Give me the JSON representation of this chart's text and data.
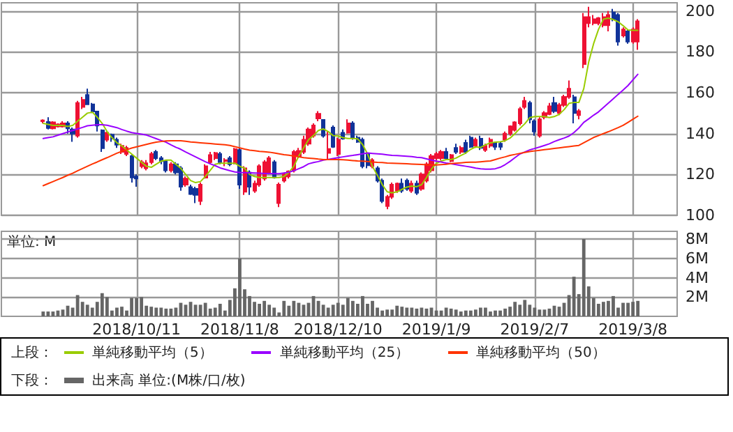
{
  "chart_data": [
    {
      "type": "candlestick",
      "ylim": [
        100,
        204
      ],
      "yticks": [
        100,
        120,
        140,
        160,
        180,
        200
      ],
      "grid": true,
      "tick_labels": "y",
      "legend": "bottom",
      "legend_title": "上段：",
      "marker": "none",
      "line_style": "solid",
      "categories": [
        null,
        null,
        null,
        null,
        null,
        null,
        null,
        null,
        null,
        null,
        null,
        null,
        null,
        null,
        null,
        null,
        null,
        null,
        null,
        "2018/10/11",
        null,
        null,
        null,
        null,
        null,
        null,
        null,
        null,
        null,
        null,
        null,
        null,
        null,
        null,
        null,
        null,
        null,
        null,
        null,
        null,
        "2018/11/8",
        null,
        null,
        null,
        null,
        null,
        null,
        null,
        null,
        null,
        null,
        null,
        null,
        null,
        null,
        null,
        null,
        null,
        null,
        null,
        "2018/12/10",
        null,
        null,
        null,
        null,
        null,
        null,
        null,
        null,
        null,
        null,
        null,
        null,
        null,
        null,
        null,
        null,
        null,
        null,
        null,
        "2019/1/9",
        null,
        null,
        null,
        null,
        null,
        null,
        null,
        null,
        null,
        null,
        null,
        null,
        null,
        null,
        null,
        null,
        null,
        null,
        null,
        "2019/2/7",
        null,
        null,
        null,
        null,
        null,
        null,
        null,
        null,
        null,
        null,
        null,
        null,
        null,
        null,
        null,
        null,
        null,
        null,
        null,
        "2019/3/8",
        null
      ],
      "series": [
        {
          "type": "candlestick",
          "ohlc": [
            [
              146,
              147,
              145,
              146.5
            ],
            [
              145.7,
              148,
              142,
              142.7
            ],
            [
              142.5,
              146,
              142,
              145.5
            ],
            [
              143.5,
              145,
              143,
              144.5
            ],
            [
              143.5,
              146,
              143,
              145
            ],
            [
              145,
              146,
              140,
              142.5
            ],
            [
              142,
              143,
              136,
              140
            ],
            [
              139,
              156,
              138,
              155
            ],
            [
              153,
              158,
              152,
              156.5
            ],
            [
              158.9,
              162,
              154,
              154.3
            ],
            [
              154.3,
              155,
              150,
              150.8
            ],
            [
              150.8,
              151,
              141,
              143.9
            ],
            [
              141.6,
              142,
              131,
              132.8
            ],
            [
              137,
              141,
              136,
              140.4
            ],
            [
              139.5,
              140,
              136,
              137.5
            ],
            [
              137,
              138,
              133,
              134.5
            ],
            [
              131,
              135,
              130,
              134
            ],
            [
              130,
              134,
              129,
              133
            ],
            [
              129,
              130,
              116,
              118.5
            ],
            [
              119,
              120,
              114,
              118
            ],
            [
              124,
              127,
              123,
              126
            ],
            [
              123,
              127,
              122,
              125.5
            ],
            [
              126,
              131,
              125,
              130
            ],
            [
              131,
              132,
              127,
              128
            ],
            [
              128,
              129,
              125,
              126.5
            ],
            [
              126.5,
              127,
              121,
              122
            ],
            [
              122,
              126,
              121,
              125
            ],
            [
              125,
              126,
              120,
              121
            ],
            [
              123,
              124,
              112,
              114
            ],
            [
              115,
              119,
              114,
              118
            ],
            [
              113.8,
              115,
              110,
              110.4
            ],
            [
              113,
              114,
              106,
              110
            ],
            [
              107,
              116,
              105,
              115
            ],
            [
              118.4,
              125,
              118,
              124
            ],
            [
              126,
              131,
              125,
              129.5
            ],
            [
              128,
              131,
              127,
              130.5
            ],
            [
              130,
              131,
              125,
              126
            ],
            [
              127,
              128,
              124,
              126.5
            ],
            [
              128,
              129,
              124,
              125
            ],
            [
              125.4,
              133,
              125,
              132.4
            ],
            [
              132,
              133,
              113,
              115
            ],
            [
              111.5,
              124,
              110,
              123
            ],
            [
              121,
              122,
              110,
              114
            ],
            [
              112,
              117,
              111,
              115.5
            ],
            [
              115,
              125,
              114,
              124
            ],
            [
              118,
              127,
              117,
              126
            ],
            [
              121,
              129,
              120,
              128
            ],
            [
              126,
              127,
              118,
              118.5
            ],
            [
              106,
              116,
              104,
              115
            ],
            [
              117,
              121,
              116,
              120
            ],
            [
              119,
              122,
              118,
              121.5
            ],
            [
              122,
              132,
              121,
              131
            ],
            [
              129,
              133,
              128,
              131.5
            ],
            [
              131,
              139,
              130,
              137
            ],
            [
              135,
              143,
              134,
              142
            ],
            [
              139,
              145,
              138,
              144
            ],
            [
              147.4,
              151,
              146,
              149.7
            ],
            [
              146.7,
              147,
              138,
              139
            ],
            [
              130.5,
              141,
              127,
              132.5
            ],
            [
              143,
              144,
              133,
              133.5
            ],
            [
              130,
              138,
              129,
              137
            ],
            [
              140.4,
              142,
              137,
              137.5
            ],
            [
              140.4,
              147,
              140,
              145
            ],
            [
              145,
              146,
              137,
              138
            ],
            [
              138,
              139,
              135.5,
              136
            ],
            [
              137,
              138,
              123,
              124
            ],
            [
              130,
              131,
              123,
              124.5
            ],
            [
              124,
              128,
              123,
              127
            ],
            [
              123,
              124,
              116,
              117
            ],
            [
              117,
              118,
              106,
              107
            ],
            [
              104.5,
              110,
              103,
              109
            ],
            [
              109,
              116,
              108,
              115
            ],
            [
              112,
              116,
              111,
              115.5
            ],
            [
              115.5,
              118,
              111,
              112
            ],
            [
              117,
              118,
              112,
              113
            ],
            [
              112,
              117,
              111,
              115.5
            ],
            [
              115.5,
              117,
              110,
              111
            ],
            [
              113,
              121,
              112,
              120
            ],
            [
              117,
              126,
              116,
              125
            ],
            [
              122,
              130,
              121,
              129
            ],
            [
              128,
              131,
              127,
              130
            ],
            [
              128,
              132,
              127,
              131
            ],
            [
              131,
              133,
              127,
              128
            ],
            [
              126.5,
              130,
              126,
              129.5
            ],
            [
              133,
              135,
              130,
              131
            ],
            [
              131,
              134,
              130,
              133
            ],
            [
              135.5,
              137,
              130,
              131
            ],
            [
              138,
              139,
              133,
              133.5
            ],
            [
              134,
              138,
              133,
              137
            ],
            [
              137.5,
              139,
              132,
              133
            ],
            [
              132,
              135,
              131,
              134
            ],
            [
              134,
              138,
              133,
              137
            ],
            [
              135.5,
              136,
              132,
              133.5
            ],
            [
              135,
              136,
              132,
              133.5
            ],
            [
              137,
              141,
              136,
              140
            ],
            [
              140,
              144,
              139,
              143.6
            ],
            [
              141.8,
              146,
              141,
              145.5
            ],
            [
              145,
              153,
              144,
              152
            ],
            [
              153,
              158,
              152,
              156
            ],
            [
              155,
              156,
              145,
              147
            ],
            [
              146,
              147,
              139,
              141
            ],
            [
              139,
              148,
              138,
              147
            ],
            [
              148,
              151,
              147,
              150
            ],
            [
              149.5,
              155,
              149,
              153.4
            ],
            [
              155,
              158,
              150,
              151
            ],
            [
              150,
              155,
              149,
              154
            ],
            [
              154,
              159,
              153,
              158
            ],
            [
              158,
              166,
              157,
              162
            ],
            [
              157.8,
              159,
              145,
              150
            ],
            [
              149,
              152,
              147,
              151
            ],
            [
              174,
              199,
              172,
              197
            ],
            [
              194,
              202,
              192,
              197
            ],
            [
              194,
              198,
              193,
              196
            ],
            [
              194,
              197,
              193,
              196.5
            ],
            [
              193,
              199,
              192,
              197
            ],
            [
              193,
              200,
              190,
              198
            ],
            [
              199.3,
              201,
              195,
              196
            ],
            [
              198,
              199,
              183,
              185
            ],
            [
              188,
              192,
              187,
              191
            ],
            [
              190,
              191,
              184,
              185
            ],
            [
              185,
              192,
              184,
              191
            ],
            [
              185,
              196,
              181,
              195
            ]
          ],
          "colors": [
            "#ee1133",
            "#113399",
            "#ee1133",
            "#ee1133",
            "#ee1133",
            "#113399",
            "#113399",
            "#ee1133",
            "#ee1133",
            "#113399",
            "#113399",
            "#113399",
            "#113399",
            "#ee1133",
            "#113399",
            "#113399",
            "#ee1133",
            "#ee1133",
            "#113399",
            "#113399",
            "#ee1133",
            "#ee1133",
            "#ee1133",
            "#113399",
            "#113399",
            "#113399",
            "#ee1133",
            "#113399",
            "#113399",
            "#ee1133",
            "#113399",
            "#113399",
            "#ee1133",
            "#ee1133",
            "#ee1133",
            "#ee1133",
            "#113399",
            "#ee1133",
            "#113399",
            "#ee1133",
            "#113399",
            "#ee1133",
            "#113399",
            "#ee1133",
            "#ee1133",
            "#ee1133",
            "#ee1133",
            "#113399",
            "#ee1133",
            "#ee1133",
            "#ee1133",
            "#ee1133",
            "#ee1133",
            "#ee1133",
            "#ee1133",
            "#ee1133",
            "#ee1133",
            "#113399",
            "#ee1133",
            "#113399",
            "#ee1133",
            "#113399",
            "#ee1133",
            "#113399",
            "#113399",
            "#113399",
            "#113399",
            "#ee1133",
            "#113399",
            "#113399",
            "#ee1133",
            "#ee1133",
            "#ee1133",
            "#113399",
            "#113399",
            "#ee1133",
            "#113399",
            "#ee1133",
            "#ee1133",
            "#ee1133",
            "#ee1133",
            "#ee1133",
            "#113399",
            "#ee1133",
            "#113399",
            "#ee1133",
            "#113399",
            "#113399",
            "#ee1133",
            "#113399",
            "#ee1133",
            "#ee1133",
            "#113399",
            "#113399",
            "#ee1133",
            "#ee1133",
            "#ee1133",
            "#ee1133",
            "#ee1133",
            "#113399",
            "#113399",
            "#ee1133",
            "#ee1133",
            "#ee1133",
            "#113399",
            "#ee1133",
            "#ee1133",
            "#ee1133",
            "#113399",
            "#ee1133",
            "#ee1133",
            "#ee1133",
            "#ee1133",
            "#ee1133",
            "#ee1133",
            "#ee1133",
            "#113399",
            "#113399",
            "#ee1133",
            "#113399",
            "#ee1133",
            "#ee1133"
          ]
        },
        {
          "type": "line",
          "name": "単純移動平均（5）",
          "color": "#99cc00",
          "values": [
            145,
            144.5,
            144,
            144,
            144,
            143.5,
            144,
            146,
            148,
            150,
            150.5,
            148,
            145,
            141,
            138,
            135.5,
            134,
            132,
            130,
            128,
            126,
            124,
            123.5,
            125,
            126.5,
            127,
            127,
            125,
            123,
            120,
            117,
            116,
            116.5,
            119,
            122,
            125,
            125.5,
            125.5,
            125.5,
            125.5,
            124,
            123,
            120,
            119,
            118.5,
            118.5,
            118.5,
            118.5,
            118.5,
            119,
            121,
            124,
            129,
            133,
            137,
            139,
            141.5,
            142.3,
            141,
            139,
            138.8,
            138,
            137.6,
            137.6,
            137.4,
            134.6,
            130,
            124,
            119.6,
            115,
            111.5,
            111,
            111.5,
            112.7,
            113.8,
            114.3,
            114,
            115,
            118.5,
            122.6,
            125.4,
            126.6,
            127.3,
            127.3,
            128,
            129.3,
            130.5,
            132.3,
            133.5,
            133.2,
            134.5,
            135.5,
            135.8,
            136,
            136.5,
            137.8,
            140,
            142.5,
            144.8,
            147.8,
            148.3,
            148.3,
            148.3,
            147.8,
            148.3,
            149.4,
            151.7,
            154.8,
            155.2,
            155.2,
            162,
            175,
            184,
            191,
            196,
            196.5,
            195.8,
            194.7,
            192.8,
            190.7,
            190.5,
            190.5
          ]
        },
        {
          "type": "line",
          "name": "単純移動平均（25）",
          "color": "#9900ff",
          "values": [
            137.6,
            138,
            138.4,
            139.2,
            140,
            140.8,
            141.5,
            142.3,
            143,
            143.8,
            144.1,
            144.3,
            144.3,
            144.1,
            143.5,
            142.9,
            142,
            141.2,
            140.5,
            140.1,
            139.7,
            139.3,
            138.4,
            137.5,
            136.6,
            135.8,
            134.5,
            133.3,
            132.3,
            131,
            129.8,
            128.6,
            127.4,
            126.2,
            125.2,
            124.3,
            123.2,
            122.5,
            121.8,
            121.2,
            121,
            120.9,
            120.8,
            120.7,
            120.6,
            120.5,
            120.5,
            120.4,
            120.4,
            120.7,
            121.1,
            121.8,
            122.8,
            123.8,
            125.2,
            125.8,
            126.3,
            127,
            127.4,
            127.8,
            128.2,
            128.6,
            129,
            129.3,
            129.7,
            130.1,
            130.5,
            130.3,
            130.1,
            129.9,
            129.6,
            129.3,
            129.2,
            129.1,
            128.9,
            128.7,
            128.4,
            128.2,
            127.6,
            127,
            126.5,
            126.1,
            125.6,
            125.2,
            124.8,
            124.4,
            124,
            123.6,
            123.1,
            122.8,
            122.6,
            122.6,
            122.8,
            123.5,
            124.8,
            126.4,
            128.2,
            130,
            131,
            132,
            132.7,
            133.4,
            134.2,
            135,
            136.1,
            137,
            137.8,
            138.8,
            140.5,
            142.7,
            145.5,
            147.2,
            149,
            150.6,
            152.8,
            154.9,
            157,
            159.2,
            161.3,
            163.5,
            166.3,
            169
          ]
        },
        {
          "type": "line",
          "name": "単純移動平均（50）",
          "color": "#ff3300",
          "values": [
            114.5,
            115.5,
            116.5,
            117.5,
            118.5,
            119.6,
            120.6,
            121.8,
            122.9,
            124,
            125.1,
            126.1,
            127.2,
            128.2,
            129.3,
            130.4,
            131.3,
            132.1,
            132.9,
            133.5,
            134.1,
            134.7,
            135.3,
            135.8,
            136.1,
            136.4,
            136.5,
            136.5,
            136.5,
            136.2,
            135.9,
            135.7,
            135.5,
            135.3,
            135.1,
            134.9,
            134.7,
            134.5,
            134.2,
            133.6,
            133,
            132.4,
            131.9,
            131.6,
            131.3,
            131.1,
            130.9,
            130.5,
            130.1,
            129.7,
            129.4,
            129,
            128.6,
            128.2,
            128,
            127.8,
            127.5,
            127.3,
            127.3,
            127.3,
            127.3,
            127.2,
            127,
            126.8,
            126.6,
            126.5,
            126.3,
            126.1,
            125.9,
            125.8,
            125.6,
            125.5,
            125.4,
            125.3,
            125.2,
            125.1,
            125,
            124.9,
            124.7,
            124.6,
            124.6,
            124.8,
            125,
            125.3,
            125.5,
            125.7,
            125.9,
            126,
            126,
            126.2,
            126.4,
            126.6,
            127.3,
            128,
            128.6,
            129.3,
            129.8,
            130.3,
            130.8,
            131.2,
            131.5,
            131.8,
            132.1,
            132.4,
            132.7,
            133,
            133.3,
            133.6,
            133.9,
            134.2,
            135.5,
            136.8,
            138.1,
            139,
            140,
            140.9,
            141.9,
            142.9,
            144,
            145.5,
            147,
            148.5
          ]
        }
      ]
    },
    {
      "type": "bar",
      "ylabel": "単位: M",
      "ylim": [
        0,
        8.8
      ],
      "yticks": [
        {
          "value": 2,
          "label": "2M"
        },
        {
          "value": 4,
          "label": "4M"
        },
        {
          "value": 6,
          "label": "6M"
        },
        {
          "value": 8,
          "label": "8M"
        }
      ],
      "grid": true,
      "legend": "bottom",
      "legend_title": "下段：",
      "categories": [
        null,
        null,
        null,
        null,
        null,
        null,
        null,
        null,
        null,
        null,
        null,
        null,
        null,
        null,
        null,
        null,
        null,
        null,
        null,
        "2018/10/11",
        null,
        null,
        null,
        null,
        null,
        null,
        null,
        null,
        null,
        null,
        null,
        null,
        null,
        null,
        null,
        null,
        null,
        null,
        null,
        null,
        "2018/11/8",
        null,
        null,
        null,
        null,
        null,
        null,
        null,
        null,
        null,
        null,
        null,
        null,
        null,
        null,
        null,
        null,
        null,
        null,
        null,
        "2018/12/10",
        null,
        null,
        null,
        null,
        null,
        null,
        null,
        null,
        null,
        null,
        null,
        null,
        null,
        null,
        null,
        null,
        null,
        null,
        null,
        "2019/1/9",
        null,
        null,
        null,
        null,
        null,
        null,
        null,
        null,
        null,
        null,
        null,
        null,
        null,
        null,
        null,
        null,
        null,
        null,
        null,
        "2019/2/7",
        null,
        null,
        null,
        null,
        null,
        null,
        null,
        null,
        null,
        null,
        null,
        null,
        null,
        null,
        null,
        null,
        null,
        null,
        null,
        "2019/3/8",
        null
      ],
      "series": [
        {
          "name": "出来高 単位:(M株/口/枚)",
          "color": "#666666",
          "values": [
            0.5,
            0.5,
            0.5,
            0.6,
            0.7,
            1.1,
            0.9,
            2.2,
            1.5,
            1.2,
            0.9,
            1.5,
            2.4,
            2.0,
            0.6,
            0.9,
            1.0,
            0.6,
            1.9,
            1.9,
            2.0,
            1.1,
            1.0,
            0.9,
            0.9,
            0.8,
            0.8,
            0.9,
            1.4,
            1.2,
            1.5,
            1.2,
            1.2,
            1.4,
            0.8,
            0.9,
            1.3,
            0.6,
            1.7,
            2.9,
            6.0,
            2.8,
            2.1,
            1.5,
            1.3,
            1.6,
            1.2,
            0.9,
            0.4,
            1.6,
            1.1,
            1.6,
            1.4,
            1.2,
            1.4,
            2.1,
            1.6,
            1.2,
            0.9,
            1.2,
            1.4,
            1.2,
            1.9,
            1.6,
            1.3,
            2.1,
            1.3,
            1.6,
            0.9,
            0.6,
            0.7,
            0.7,
            1.1,
            1.0,
            0.9,
            0.9,
            0.8,
            0.9,
            0.8,
            0.9,
            0.6,
            0.6,
            0.9,
            0.8,
            0.7,
            0.5,
            0.6,
            0.6,
            0.7,
            0.9,
            0.9,
            0.5,
            0.6,
            0.6,
            0.8,
            1.0,
            1.5,
            1.2,
            1.7,
            1.2,
            0.9,
            0.7,
            0.7,
            0.8,
            1.1,
            1.0,
            1.4,
            2.2,
            4.1,
            2.3,
            8.0,
            3.1,
            1.9,
            1.3,
            1.5,
            1.6,
            2.1,
            0.9,
            1.4,
            1.4,
            1.5,
            1.6
          ]
        }
      ]
    }
  ]
}
